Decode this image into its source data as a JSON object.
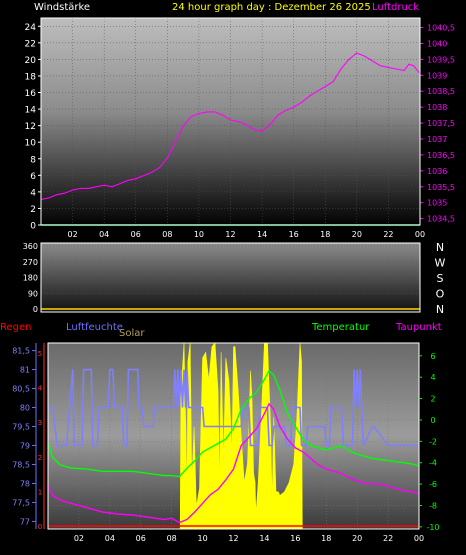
{
  "header": {
    "left": "Windstärke",
    "center": "24 hour graph day : Dezember 26 2025",
    "right": "Luftdruck"
  },
  "colors": {
    "pressure": "#ff00ff",
    "wind": "#00ff66",
    "winddir": "#ffd700",
    "humidity": "#7f7fff",
    "temperature": "#00ff00",
    "dewpoint": "#ff00ff",
    "solar": "#ffff00",
    "rain": "#ff0000",
    "humidity_label": "#6f6fff",
    "solar_label": "#b0a060",
    "frame": "#ffffff"
  },
  "x_ticks": [
    "02",
    "04",
    "06",
    "08",
    "10",
    "12",
    "14",
    "16",
    "18",
    "20",
    "22",
    "00"
  ],
  "panel2": {
    "compass": [
      "N",
      "W",
      "S",
      "O",
      "N"
    ]
  },
  "panel3": {
    "labels": {
      "rain": "Regen",
      "humidity": "Luftfeuchte",
      "solar": "Solar",
      "temperature": "Temperatur",
      "dewpoint": "Taupunkt"
    },
    "humidity_ticks": [
      "81,5",
      "81",
      "80,5",
      "80",
      "79,5",
      "79",
      "78,5",
      "78",
      "77,5",
      "77"
    ],
    "rain_ticks": [
      "5",
      "4",
      "3",
      "2",
      "1",
      "0"
    ],
    "temp_ticks": [
      "6",
      "4",
      "2",
      "0",
      "-2",
      "-4",
      "-6",
      "-8",
      "-10"
    ]
  },
  "chart_data": [
    {
      "type": "line",
      "title": "24 hour graph day : Dezember 26 2025",
      "x_label": "",
      "x_range_hours": [
        0,
        24
      ],
      "left_axis": {
        "label": "Windstärke",
        "ticks": [
          "24",
          "22",
          "20",
          "18",
          "16",
          "14",
          "12",
          "10",
          "8",
          "6",
          "4",
          "2",
          "0"
        ],
        "range": [
          0,
          25
        ]
      },
      "right_axis": {
        "label": "Luftdruck",
        "ticks": [
          "1040,5",
          "1040",
          "1039,5",
          "1039",
          "1038,5",
          "1038",
          "1037,5",
          "1037",
          "1036,5",
          "1036",
          "1035,5",
          "1035",
          "1034,5"
        ],
        "range": [
          1034.3,
          1040.8
        ]
      },
      "series": [
        {
          "name": "Luftdruck",
          "axis": "right",
          "x": [
            0,
            0.5,
            1,
            1.5,
            2,
            2.5,
            3,
            3.5,
            4,
            4.5,
            5,
            5.5,
            6,
            6.5,
            7,
            7.5,
            8,
            8.5,
            9,
            9.5,
            10,
            10.5,
            11,
            11.5,
            12,
            12.5,
            13,
            13.5,
            14,
            14.5,
            15,
            15.5,
            16,
            16.5,
            17,
            17.5,
            18,
            18.5,
            19,
            19.5,
            20,
            20.5,
            21,
            21.5,
            22,
            22.5,
            23,
            23.3,
            23.6,
            24
          ],
          "y": [
            1035.1,
            1035.15,
            1035.25,
            1035.3,
            1035.4,
            1035.45,
            1035.45,
            1035.5,
            1035.55,
            1035.5,
            1035.6,
            1035.7,
            1035.75,
            1035.85,
            1035.95,
            1036.1,
            1036.4,
            1036.9,
            1037.4,
            1037.7,
            1037.8,
            1037.85,
            1037.85,
            1037.75,
            1037.6,
            1037.55,
            1037.45,
            1037.3,
            1037.25,
            1037.45,
            1037.75,
            1037.9,
            1038.0,
            1038.15,
            1038.35,
            1038.5,
            1038.65,
            1038.8,
            1039.2,
            1039.5,
            1039.7,
            1039.6,
            1039.45,
            1039.3,
            1039.25,
            1039.2,
            1039.15,
            1039.35,
            1039.3,
            1039.05
          ]
        },
        {
          "name": "Windstärke",
          "axis": "left",
          "x": [
            0,
            24
          ],
          "y": [
            0,
            0
          ]
        }
      ]
    },
    {
      "type": "line",
      "title": "",
      "x_range_hours": [
        0,
        24
      ],
      "left_axis": {
        "ticks": [
          "360",
          "270",
          "180",
          "90",
          "0"
        ],
        "range": [
          0,
          360
        ]
      },
      "series": [
        {
          "name": "Windrichtung",
          "axis": "left",
          "x": [
            0,
            24
          ],
          "y": [
            0,
            0
          ]
        }
      ]
    },
    {
      "type": "line",
      "title": "",
      "x_range_hours": [
        0,
        24
      ],
      "humidity_axis": {
        "label": "Luftfeuchte",
        "range": [
          76.8,
          81.7
        ]
      },
      "rain_axis": {
        "label": "Regen",
        "range": [
          0,
          5.2
        ]
      },
      "temp_axis": {
        "range": [
          -10.2,
          7.2
        ]
      },
      "series": [
        {
          "name": "Luftfeuchte",
          "axis": "humidity",
          "x": [
            0,
            0.3,
            0.6,
            1.2,
            1.6,
            1.7,
            2.2,
            2.3,
            2.8,
            2.9,
            3.2,
            3.3,
            3.9,
            4.0,
            4.2,
            4.3,
            4.8,
            4.9,
            5.1,
            5.2,
            5.8,
            5.9,
            6.1,
            6.2,
            6.8,
            6.9,
            8.1,
            8.2,
            8.3,
            8.4,
            8.5,
            8.6,
            8.7,
            8.8,
            8.9,
            9.0,
            9.1,
            10.0,
            10.1,
            12.5,
            12.6,
            13.0,
            13.1,
            13.6,
            13.7,
            14.2,
            14.3,
            14.5,
            14.6,
            15.3,
            15.4,
            15.7,
            15.8,
            16.3,
            16.4,
            16.7,
            16.8,
            17.9,
            18.0,
            18.2,
            18.3,
            19.0,
            19.1,
            19.7,
            19.8,
            19.9,
            20.0,
            20.1,
            20.2,
            20.3,
            20.4,
            21.0,
            21.1,
            22.0,
            22.1,
            24
          ],
          "y": [
            80,
            80,
            79,
            79,
            81,
            79,
            79,
            81,
            81,
            79,
            79,
            80,
            80,
            81,
            81,
            80,
            80,
            79,
            79,
            81,
            81,
            80,
            80,
            79.5,
            79.5,
            80,
            80,
            81,
            80,
            81,
            80,
            81,
            80,
            81,
            80,
            81,
            80,
            80,
            79.5,
            79.5,
            80,
            80,
            79,
            79,
            80,
            80,
            79,
            79,
            79.5,
            79.5,
            79,
            79,
            80,
            80,
            79,
            79,
            79.5,
            79.5,
            79,
            79,
            80,
            80,
            79,
            79,
            81,
            80,
            81,
            80,
            81,
            80,
            79,
            79.5,
            79.5,
            79,
            79,
            79
          ]
        },
        {
          "name": "Temperatur",
          "axis": "temp",
          "x": [
            0,
            0.3,
            0.8,
            1.5,
            2.5,
            3.5,
            4.5,
            5.5,
            6.5,
            7.5,
            8.0,
            8.5,
            9.0,
            9.5,
            10.0,
            10.5,
            11.0,
            11.5,
            12.0,
            12.5,
            13.0,
            13.5,
            14.0,
            14.3,
            14.6,
            15.0,
            15.5,
            16.0,
            16.5,
            17.0,
            17.5,
            18.0,
            18.5,
            19.0,
            19.5,
            20.0,
            20.5,
            21.0,
            21.5,
            22.0,
            22.5,
            23.0,
            23.5,
            24
          ],
          "y": [
            -2.2,
            -3.5,
            -4.2,
            -4.5,
            -4.6,
            -4.8,
            -4.8,
            -4.8,
            -5.0,
            -5.2,
            -5.2,
            -5.3,
            -4.5,
            -3.8,
            -3.0,
            -2.6,
            -2.2,
            -1.8,
            -0.8,
            1.0,
            2.0,
            2.6,
            3.8,
            4.6,
            4.2,
            2.8,
            0.6,
            -0.6,
            -1.8,
            -2.4,
            -2.6,
            -2.8,
            -2.6,
            -2.4,
            -2.9,
            -3.2,
            -3.4,
            -3.6,
            -3.7,
            -3.8,
            -3.9,
            -4.0,
            -4.1,
            -4.3
          ]
        },
        {
          "name": "Taupunkt",
          "axis": "temp",
          "x": [
            0,
            0.4,
            1.0,
            1.5,
            2.5,
            3.5,
            4.5,
            5.5,
            6.5,
            7.5,
            8.0,
            8.5,
            9.0,
            9.5,
            10.0,
            10.5,
            11.0,
            11.5,
            12.0,
            12.5,
            13.0,
            13.5,
            14.0,
            14.3,
            14.6,
            15.0,
            15.5,
            16.0,
            16.5,
            17.0,
            17.5,
            18.0,
            18.5,
            19.0,
            19.5,
            20.0,
            20.5,
            21.0,
            21.5,
            22.0,
            22.5,
            23.0,
            23.5,
            24
          ],
          "y": [
            -6.2,
            -7.2,
            -7.6,
            -7.8,
            -8.2,
            -8.6,
            -8.8,
            -8.9,
            -9.1,
            -9.3,
            -9.2,
            -9.6,
            -9.3,
            -8.6,
            -7.8,
            -7.0,
            -6.5,
            -5.6,
            -4.6,
            -2.4,
            -1.6,
            -0.8,
            0.6,
            1.5,
            1.0,
            -0.6,
            -1.8,
            -2.6,
            -3.0,
            -3.6,
            -4.2,
            -4.6,
            -4.8,
            -5.0,
            -5.4,
            -5.7,
            -5.9,
            -6.0,
            -6.0,
            -6.2,
            -6.4,
            -6.6,
            -6.7,
            -6.9
          ]
        },
        {
          "name": "Solar",
          "axis": "fraction",
          "x": [
            8.55,
            8.6,
            8.8,
            9.0,
            9.05,
            9.2,
            9.3,
            9.45,
            9.6,
            9.8,
            10.0,
            10.2,
            10.4,
            10.6,
            10.8,
            11.0,
            11.1,
            11.2,
            11.35,
            11.5,
            11.7,
            11.9,
            12.0,
            12.1,
            12.3,
            12.5,
            12.7,
            12.9,
            13.0,
            13.1,
            13.2,
            13.3,
            13.4,
            13.45,
            13.6,
            13.8,
            14.0,
            14.2,
            14.4,
            14.5,
            14.6,
            14.75,
            14.9,
            15.0,
            15.3,
            15.6,
            15.9,
            16.1,
            16.3,
            16.4,
            16.45
          ],
          "y": [
            0,
            0.72,
            1.0,
            0.2,
            0.9,
            1.0,
            0.25,
            0.55,
            0.12,
            0.22,
            0.92,
            0.95,
            0.8,
            0.98,
            1.0,
            0.75,
            0.2,
            0.95,
            0.35,
            0.92,
            0.8,
            0.4,
            0.98,
            0.98,
            0.75,
            0.5,
            0.25,
            0.35,
            0.55,
            0.85,
            0.7,
            0.3,
            0.25,
            0.08,
            0.25,
            0.6,
            1.0,
            1.0,
            0.55,
            0.15,
            0.6,
            0.2,
            0.2,
            0.18,
            0.2,
            0.25,
            0.35,
            0.6,
            1.0,
            0.9,
            0
          ]
        },
        {
          "name": "Regen",
          "axis": "rain",
          "x": [
            0,
            24
          ],
          "y": [
            0,
            0
          ]
        }
      ]
    }
  ]
}
